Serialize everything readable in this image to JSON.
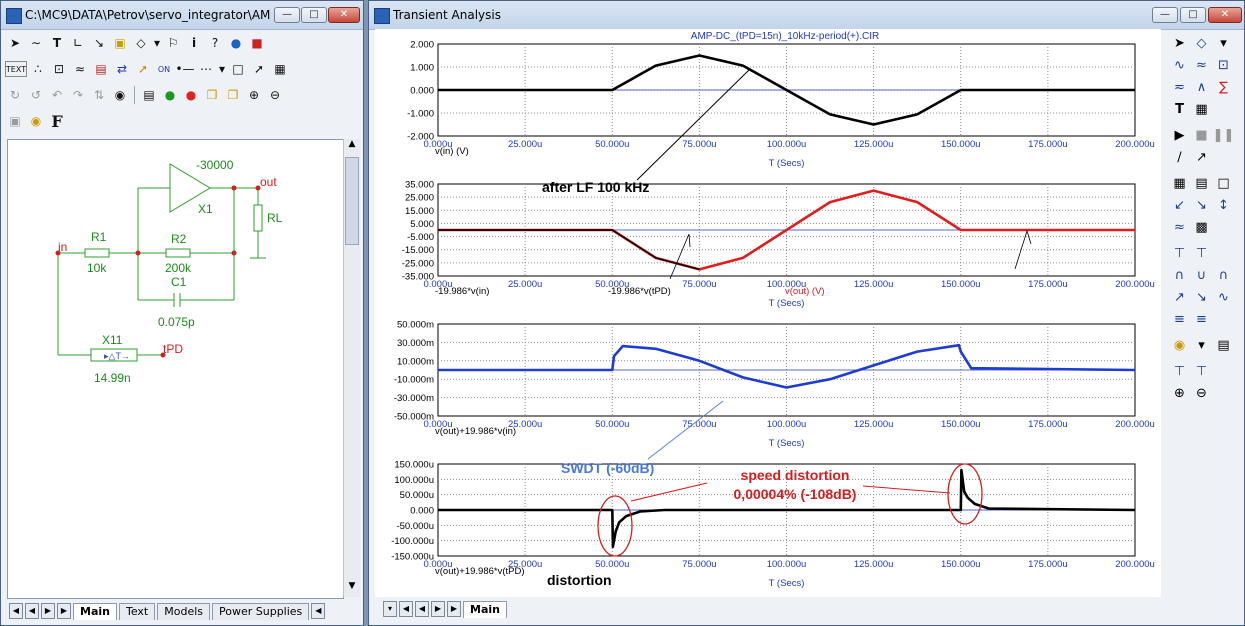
{
  "schematic_window": {
    "title": "C:\\MC9\\DATA\\Petrov\\servo_integrator\\AM...",
    "toolbar_row1": [
      "select-icon",
      "wire-icon",
      "text-icon",
      "line-icon",
      "diagonal-icon",
      "component-icon",
      "shape-icon",
      "flag-icon",
      "info-icon",
      "help-icon",
      "globe-icon",
      "stop-icon"
    ],
    "toolbar_row2": [
      "TEXT",
      "node-icon",
      "pin-icon",
      "attr-icon",
      "net-icon",
      "bus-icon",
      "probe-icon",
      "ON",
      "dot-icon",
      "grid-icon",
      "dropdown-icon",
      "page-icon",
      "cursor-icon",
      "props-icon"
    ],
    "toolbar_row3": [
      "rotate-icon",
      "rotate2-icon",
      "undo-icon",
      "redo-icon",
      "flip-icon",
      "find-icon",
      "run-icon",
      "cancel-icon",
      "copy-icon",
      "paste-icon",
      "zoom-in-icon",
      "zoom-out-icon"
    ],
    "toolbar_row4": [
      "lock-icon",
      "mode-icon",
      "F"
    ],
    "labels": {
      "gain": "-30000",
      "x1": "X1",
      "out": "out",
      "rl": "RL",
      "in": "in",
      "r1": "R1",
      "r1v": "10k",
      "r2": "R2",
      "r2v": "200k",
      "c1": "C1",
      "c1v": "0.075p",
      "x11": "X11",
      "tpd": "tPD",
      "x11v": "14.99n"
    },
    "tabs": [
      "Main",
      "Text",
      "Models",
      "Power Supplies"
    ]
  },
  "analysis_window": {
    "title": "Transient Analysis",
    "file_title": "AMP-DC_(tPD=15n)_10kHz-period(+).CIR",
    "xticks": [
      "0.000u",
      "25.000u",
      "50.000u",
      "75.000u",
      "100.000u",
      "125.000u",
      "150.000u",
      "175.000u",
      "200.000u"
    ],
    "xlabel": "T (Secs)",
    "plots": [
      {
        "yticks": [
          "2.000",
          "1.000",
          "0.000",
          "-1.000",
          "-2.000"
        ],
        "legend": [
          "v(in) (V)"
        ],
        "annotation": "after LF 100 kHz"
      },
      {
        "yticks": [
          "35.000",
          "25.000",
          "15.000",
          "5.000",
          "-5.000",
          "-15.000",
          "-25.000",
          "-35.000"
        ],
        "legend": [
          "-19.986*v(in)",
          "-19.986*v(tPD)",
          "v(out) (V)"
        ]
      },
      {
        "yticks": [
          "50.000m",
          "30.000m",
          "10.000m",
          "-10.000m",
          "-30.000m",
          "-50.000m"
        ],
        "legend": [
          "v(out)+19.986*v(in)"
        ],
        "annotation": "SWDT (-60dB)"
      },
      {
        "yticks": [
          "150.000u",
          "100.000u",
          "50.000u",
          "0.000",
          "-50.000u",
          "-100.000u",
          "-150.000u"
        ],
        "legend": [
          "v(out)+19.986*v(tPD)"
        ],
        "annotation1": "speed distortion",
        "annotation2": "0,00004% (-108dB)",
        "annotation3": "distortion"
      }
    ],
    "tabs": [
      "Main"
    ]
  },
  "chart_data": [
    {
      "type": "line",
      "title": "AMP-DC_(tPD=15n)_10kHz-period(+).CIR",
      "xlabel": "T (Secs)",
      "ylabel": "v(in) (V)",
      "xlim": [
        0,
        200
      ],
      "ylim": [
        -2,
        2
      ],
      "series": [
        {
          "name": "v(in) (V)",
          "color": "#000000",
          "x": [
            0,
            50,
            62.5,
            75,
            87.5,
            100,
            112.5,
            125,
            137.5,
            150,
            200
          ],
          "y": [
            0,
            0,
            1.06,
            1.5,
            1.06,
            0,
            -1.06,
            -1.5,
            -1.06,
            0,
            0
          ]
        }
      ]
    },
    {
      "type": "line",
      "xlabel": "T (Secs)",
      "xlim": [
        0,
        200
      ],
      "ylim": [
        -35,
        35
      ],
      "series": [
        {
          "name": "v(out) (V)",
          "color": "#e01e1e",
          "x": [
            0,
            50,
            62.5,
            75,
            87.5,
            100,
            112.5,
            125,
            137.5,
            150,
            200
          ],
          "y": [
            0,
            0,
            -21.2,
            -30,
            -21.2,
            0,
            21.2,
            30,
            21.2,
            0,
            0
          ]
        },
        {
          "name": "-19.986*v(in)",
          "color": "#000000",
          "x": [
            0,
            50,
            62.5,
            75
          ],
          "y": [
            0,
            0,
            -21.2,
            -30
          ]
        }
      ]
    },
    {
      "type": "line",
      "xlabel": "T (Secs)",
      "xlim": [
        0,
        200
      ],
      "ylim": [
        -0.05,
        0.05
      ],
      "series": [
        {
          "name": "v(out)+19.986*v(in)",
          "color": "#1e3cd2",
          "x": [
            0,
            50,
            50.5,
            53,
            62.5,
            75,
            87.5,
            100,
            112.5,
            125,
            137.5,
            149.5,
            150,
            153,
            200
          ],
          "y": [
            0,
            0,
            0.015,
            0.026,
            0.023,
            0.01,
            -0.008,
            -0.019,
            -0.01,
            0.005,
            0.02,
            0.027,
            0.02,
            0.002,
            0
          ]
        }
      ]
    },
    {
      "type": "line",
      "xlabel": "T (Secs)",
      "xlim": [
        0,
        200
      ],
      "ylim": [
        -0.00015,
        0.00015
      ],
      "series": [
        {
          "name": "v(out)+19.986*v(tPD)",
          "color": "#000000",
          "x": [
            0,
            50,
            50.2,
            51,
            52,
            54,
            58,
            65,
            100,
            135,
            150,
            150.2,
            151,
            152,
            154,
            158,
            200
          ],
          "y": [
            0,
            0,
            -0.00012,
            -7e-05,
            -4e-05,
            -2e-05,
            -5e-06,
            0,
            0,
            0,
            0,
            0.00013,
            6e-05,
            4e-05,
            2e-05,
            5e-06,
            0
          ]
        }
      ]
    }
  ]
}
